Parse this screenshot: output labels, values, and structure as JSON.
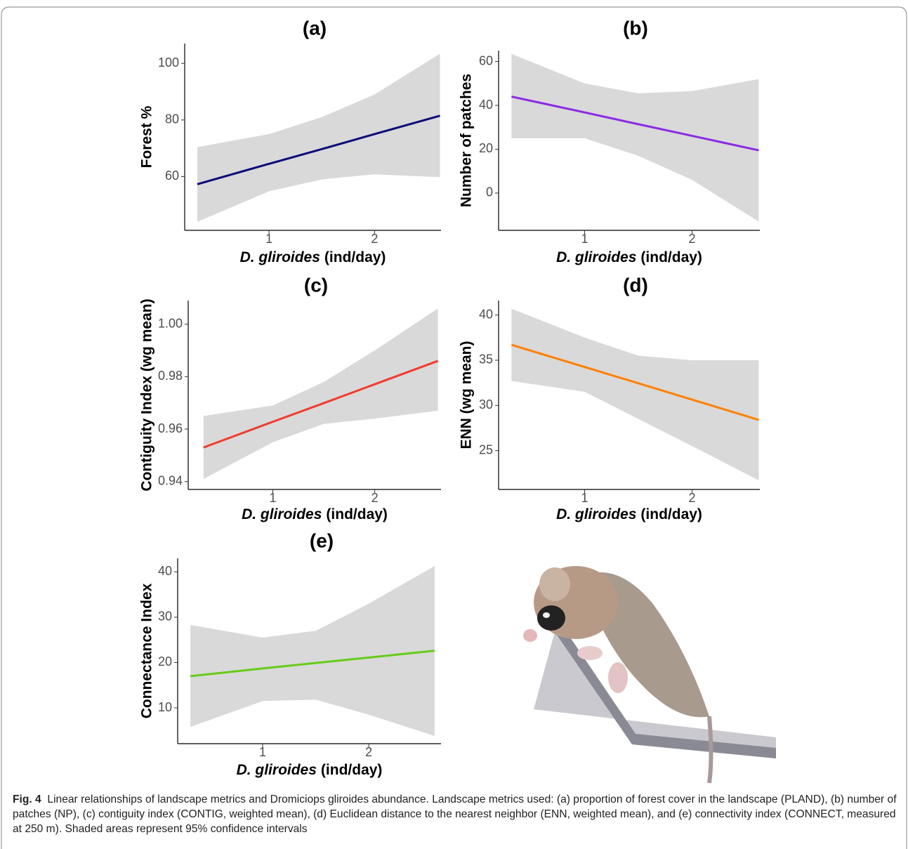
{
  "chart_data": [
    {
      "type": "line",
      "title": "(a)",
      "ylabel": "Forest %",
      "xlabel": [
        "D. gliroides",
        "(ind/day)"
      ],
      "x": [
        0.32,
        1,
        1.5,
        2,
        2.62
      ],
      "xlim": [
        0.2,
        2.63
      ],
      "xticks": [
        1,
        2
      ],
      "ylim": [
        41,
        107
      ],
      "yticks": [
        60,
        80,
        100
      ],
      "values": [
        57.3,
        64.5,
        69.7,
        75.0,
        81.5
      ],
      "color": "#0a0a7a",
      "ci_lower": [
        44,
        54.8,
        59,
        60.8,
        59.8
      ],
      "ci_upper": [
        70.4,
        75,
        81,
        89,
        103.4
      ],
      "ci_color": "#d9d9d9"
    },
    {
      "type": "line",
      "title": "(b)",
      "ylabel": "Number of patches",
      "xlabel": [
        "D. gliroides",
        "(ind/day)"
      ],
      "x": [
        0.32,
        1,
        1.5,
        2,
        2.62
      ],
      "xlim": [
        0.2,
        2.63
      ],
      "xticks": [
        1,
        2
      ],
      "ylim": [
        -17,
        65
      ],
      "yticks": [
        0,
        20,
        40,
        60
      ],
      "values": [
        44,
        36.8,
        31.4,
        26.1,
        19.5
      ],
      "color": "#8a2be2",
      "ci_lower": [
        25,
        25,
        17,
        6,
        -13
      ],
      "ci_upper": [
        63.5,
        50,
        45.5,
        46.5,
        52
      ],
      "ci_color": "#d9d9d9"
    },
    {
      "type": "line",
      "title": "(c)",
      "ylabel": "Contiguity Index (wg mean)",
      "xlabel": [
        "D. gliroides",
        "(ind/day)"
      ],
      "x": [
        0.32,
        1,
        1.5,
        2,
        2.62
      ],
      "xlim": [
        0.17,
        2.65
      ],
      "xticks": [
        1,
        2
      ],
      "ylim": [
        0.937,
        1.009
      ],
      "yticks": [
        0.94,
        0.96,
        0.98,
        {
          "value": 1,
          "label": "1.00"
        }
      ],
      "values": [
        0.953,
        0.9628,
        0.9699,
        0.9771,
        0.986
      ],
      "color": "#f03c2e",
      "ci_lower": [
        0.941,
        0.955,
        0.962,
        0.964,
        0.967
      ],
      "ci_upper": [
        0.965,
        0.969,
        0.978,
        0.99,
        1.006
      ],
      "ci_color": "#d9d9d9"
    },
    {
      "type": "line",
      "title": "(d)",
      "ylabel": "ENN (wg mean)",
      "xlabel": [
        "D. gliroides",
        "(ind/day)"
      ],
      "x": [
        0.32,
        1,
        1.5,
        2,
        2.62
      ],
      "xlim": [
        0.2,
        2.63
      ],
      "xticks": [
        1,
        2
      ],
      "ylim": [
        20.7,
        41.6
      ],
      "yticks": [
        25,
        30,
        35,
        40
      ],
      "values": [
        36.7,
        34.25,
        32.45,
        30.64,
        28.4
      ],
      "color": "#ff8000",
      "ci_lower": [
        32.7,
        31.5,
        28.5,
        25.5,
        21.7
      ],
      "ci_upper": [
        40.7,
        37.5,
        35.5,
        35,
        35
      ],
      "ci_color": "#d9d9d9"
    },
    {
      "type": "line",
      "title": "(e)",
      "ylabel": "Connectance Index",
      "xlabel": [
        "D. gliroides",
        "(ind/day)"
      ],
      "x": [
        0.32,
        1,
        1.5,
        2,
        2.62
      ],
      "xlim": [
        0.2,
        2.68
      ],
      "xticks": [
        1,
        2
      ],
      "ylim": [
        2.1,
        43
      ],
      "yticks": [
        10,
        20,
        30,
        40
      ],
      "values": [
        17,
        18.7,
        19.9,
        21.1,
        22.6
      ],
      "color": "#66cc1a",
      "ci_lower": [
        5.8,
        11.5,
        11.8,
        8.5,
        3.8
      ],
      "ci_upper": [
        28.3,
        25.5,
        27,
        33,
        41.3
      ],
      "ci_color": "#d9d9d9"
    }
  ],
  "caption": {
    "label": "Fig. 4",
    "text": "Linear relationships of landscape metrics and Dromiciops gliroides abundance. Landscape metrics used: (a) proportion of forest cover in the landscape (PLAND), (b) number of patches (NP), (c) contiguity index (CONTIG, weighted mean), (d) Euclidean distance to the nearest neighbor (ENN, weighted mean), and (e) connectivity index (CONNECT, measured at 250 m). Shaded areas represent 95% confidence intervals"
  }
}
